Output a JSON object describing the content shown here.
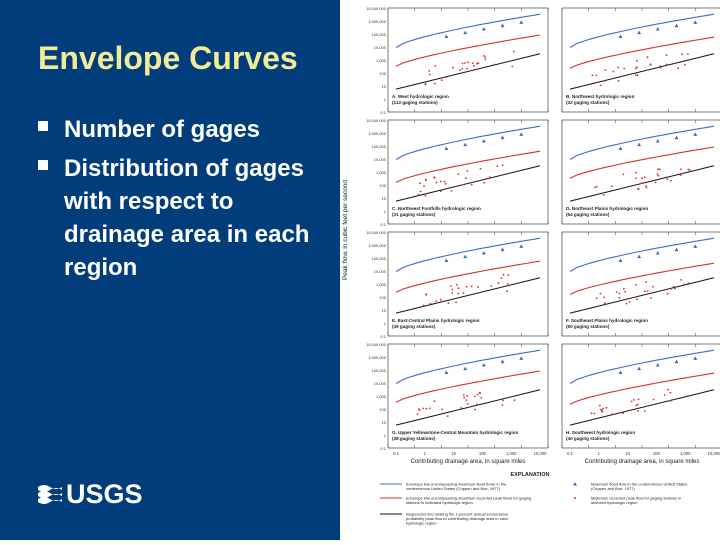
{
  "slide": {
    "title": "Envelope Curves",
    "bullets": [
      "Number of gages",
      "Distribution of gages with respect to drainage area in each region"
    ]
  },
  "logo": {
    "text": "USGS",
    "icon": "usgs-wave-icon"
  },
  "figure": {
    "ylabel": "Peak flow, in cubic feet per second",
    "xlabel": "Contributing drainage area, in square miles",
    "y_ticks": [
      "10,000,000",
      "1,000,000",
      "100,000",
      "10,000",
      "1,000",
      "100",
      "10",
      "1",
      "0.1"
    ],
    "x_ticks": [
      "0.1",
      "1",
      "10",
      "100",
      "1,000",
      "10,000"
    ],
    "panels": [
      {
        "label": "A. West hydrologic region",
        "gages": "(113 gaging stations)"
      },
      {
        "label": "B. Northwest hydrologic region",
        "gages": "(32 gaging stations)"
      },
      {
        "label": "C. Northwest Foothills hydrologic region",
        "gages": "(31 gaging stations)"
      },
      {
        "label": "D. Northeast Plains hydrologic region",
        "gages": "(64 gaging stations)"
      },
      {
        "label": "E. East-Central Plains hydrologic region",
        "gages": "(39 gaging stations)"
      },
      {
        "label": "F. Southeast Plains hydrologic region",
        "gages": "(60 gaging stations)"
      },
      {
        "label": "G. Upper Yellowstone-Central Mountain hydrologic region",
        "gages": "(38 gaging stations)"
      },
      {
        "label": "H. Southwest hydrologic region",
        "gages": "(40 gaging stations)"
      }
    ],
    "explanation": {
      "title": "EXPLANATION",
      "items": [
        {
          "text": "Envelope line encompassing maximum flood flows in the conterminous United States (Crippen and Bue, 1977)",
          "color": "#3a6fc4"
        },
        {
          "text": "Envelope line encompassing maximum recorded peak flows for gaging stations in indicated hydrologic region",
          "color": "#d8302a"
        },
        {
          "text": "Regression line relating the 1-percent annual exceedance probability peak flow to contributing drainage area in each hydrologic region",
          "color": "#111111"
        },
        {
          "text": "Maximum flood flow in the conterminous United States (Crippen and Bue, 1977)",
          "color": "#3a6fc4"
        },
        {
          "text": "Maximum recorded peak flow for gaging stations in selected hydrologic region",
          "color": "#d8302a"
        }
      ]
    }
  },
  "colors": {
    "background": "#003d7a",
    "title": "#f2eb9a",
    "blue_line": "#3a6fc4",
    "red_line": "#d8302a"
  }
}
